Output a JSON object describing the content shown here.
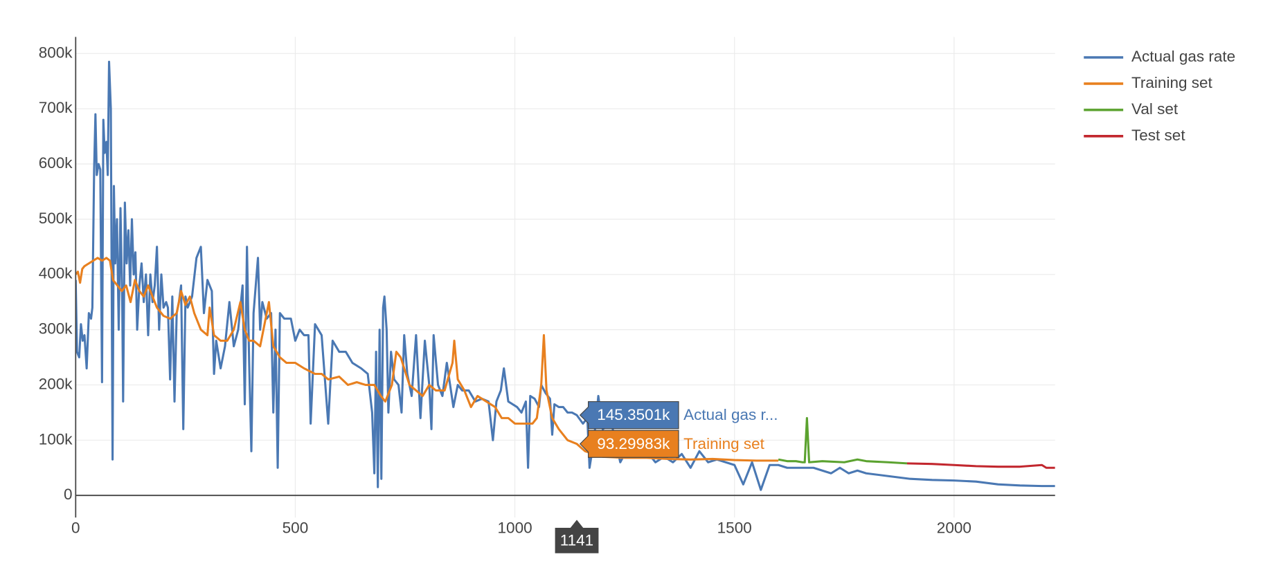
{
  "chart_data": {
    "type": "line",
    "xlim": [
      0,
      2230
    ],
    "ylim": [
      -40000,
      830000
    ],
    "xticks": [
      0,
      500,
      1000,
      1500,
      2000
    ],
    "yticks": [
      0,
      {
        "value": 100000,
        "label": "100k"
      },
      {
        "value": 200000,
        "label": "200k"
      },
      {
        "value": 300000,
        "label": "300k"
      },
      {
        "value": 400000,
        "label": "400k"
      },
      {
        "value": 500000,
        "label": "500k"
      },
      {
        "value": 600000,
        "label": "600k"
      },
      {
        "value": 700000,
        "label": "700k"
      },
      {
        "value": 800000,
        "label": "800k"
      }
    ],
    "grid": true,
    "legend": "top-right",
    "series": [
      {
        "name": "Actual gas rate",
        "color": "#4a78b3",
        "x": [
          0,
          3,
          8,
          12,
          16,
          20,
          25,
          30,
          35,
          38,
          42,
          45,
          48,
          52,
          56,
          60,
          63,
          66,
          70,
          73,
          76,
          80,
          84,
          87,
          90,
          94,
          98,
          102,
          106,
          108,
          112,
          116,
          120,
          124,
          128,
          132,
          136,
          140,
          145,
          150,
          155,
          160,
          165,
          170,
          175,
          180,
          185,
          190,
          195,
          200,
          206,
          210,
          215,
          220,
          225,
          230,
          235,
          240,
          245,
          250,
          255,
          265,
          275,
          285,
          292,
          300,
          310,
          315,
          320,
          330,
          340,
          350,
          360,
          370,
          380,
          385,
          390,
          395,
          400,
          405,
          410,
          415,
          420,
          425,
          435,
          445,
          450,
          455,
          460,
          465,
          475,
          490,
          500,
          510,
          520,
          530,
          535,
          545,
          560,
          575,
          585,
          600,
          615,
          630,
          650,
          665,
          675,
          680,
          684,
          688,
          692,
          696,
          700,
          703,
          708,
          712,
          718,
          725,
          735,
          742,
          748,
          755,
          765,
          775,
          785,
          795,
          805,
          810,
          815,
          825,
          835,
          845,
          860,
          870,
          880,
          895,
          910,
          925,
          940,
          950,
          958,
          968,
          975,
          985,
          995,
          1005,
          1015,
          1025,
          1030,
          1035,
          1045,
          1055,
          1060,
          1070,
          1080,
          1085,
          1090,
          1100,
          1110,
          1120,
          1130,
          1141,
          1155,
          1165,
          1170,
          1180,
          1190,
          1200,
          1220,
          1240,
          1260,
          1280,
          1300,
          1320,
          1340,
          1360,
          1380,
          1400,
          1420,
          1440,
          1460,
          1480,
          1500,
          1520,
          1540,
          1560,
          1580,
          1600,
          1620,
          1650,
          1680,
          1700,
          1720,
          1740,
          1760,
          1780,
          1800,
          1850,
          1900,
          1950,
          2000,
          2050,
          2100,
          2150,
          2200,
          2230
        ],
        "values": [
          390000,
          260000,
          250000,
          310000,
          280000,
          290000,
          230000,
          330000,
          320000,
          340000,
          590000,
          690000,
          580000,
          600000,
          590000,
          205000,
          680000,
          620000,
          640000,
          580000,
          785000,
          700000,
          65000,
          560000,
          420000,
          500000,
          300000,
          520000,
          350000,
          170000,
          530000,
          420000,
          480000,
          380000,
          500000,
          400000,
          440000,
          300000,
          380000,
          420000,
          350000,
          400000,
          290000,
          400000,
          350000,
          380000,
          450000,
          300000,
          400000,
          340000,
          350000,
          340000,
          210000,
          360000,
          170000,
          330000,
          350000,
          380000,
          120000,
          360000,
          340000,
          360000,
          430000,
          450000,
          330000,
          390000,
          370000,
          220000,
          280000,
          230000,
          270000,
          350000,
          270000,
          300000,
          380000,
          165000,
          450000,
          240000,
          80000,
          330000,
          380000,
          430000,
          300000,
          350000,
          320000,
          330000,
          150000,
          300000,
          50000,
          330000,
          320000,
          320000,
          280000,
          300000,
          290000,
          290000,
          130000,
          310000,
          290000,
          130000,
          280000,
          260000,
          260000,
          240000,
          230000,
          220000,
          150000,
          40000,
          260000,
          15000,
          300000,
          30000,
          340000,
          360000,
          300000,
          150000,
          260000,
          210000,
          200000,
          150000,
          290000,
          220000,
          180000,
          290000,
          140000,
          280000,
          200000,
          120000,
          290000,
          200000,
          180000,
          240000,
          160000,
          200000,
          190000,
          190000,
          170000,
          175000,
          170000,
          100000,
          170000,
          190000,
          230000,
          170000,
          165000,
          160000,
          150000,
          170000,
          50000,
          180000,
          175000,
          160000,
          200000,
          185000,
          175000,
          110000,
          165000,
          160000,
          160000,
          150000,
          150000,
          145350.1,
          130000,
          140000,
          50000,
          100000,
          180000,
          120000,
          130000,
          60000,
          90000,
          70000,
          80000,
          60000,
          70000,
          60000,
          75000,
          50000,
          80000,
          60000,
          65000,
          60000,
          55000,
          20000,
          60000,
          10000,
          55000,
          55000,
          50000,
          50000,
          50000,
          45000,
          40000,
          50000,
          40000,
          45000,
          40000,
          35000,
          30000,
          28000,
          27000,
          25000,
          20000,
          18000,
          17000,
          17000
        ]
      },
      {
        "name": "Training set",
        "color": "#e8801f",
        "x": [
          0,
          5,
          10,
          15,
          20,
          30,
          40,
          50,
          60,
          70,
          78,
          85,
          95,
          105,
          115,
          125,
          135,
          145,
          155,
          165,
          175,
          185,
          200,
          215,
          230,
          240,
          250,
          260,
          270,
          285,
          300,
          305,
          315,
          330,
          345,
          360,
          375,
          385,
          395,
          405,
          420,
          430,
          440,
          450,
          465,
          480,
          500,
          520,
          545,
          560,
          575,
          600,
          620,
          640,
          660,
          680,
          695,
          705,
          720,
          730,
          740,
          760,
          775,
          790,
          805,
          820,
          840,
          858,
          862,
          870,
          885,
          900,
          915,
          935,
          955,
          970,
          985,
          1000,
          1020,
          1040,
          1050,
          1060,
          1066,
          1072,
          1085,
          1100,
          1120,
          1141,
          1160,
          1180,
          1200,
          1250,
          1300,
          1350,
          1400,
          1450,
          1500,
          1550,
          1600
        ],
        "values": [
          400000,
          405000,
          385000,
          410000,
          415000,
          420000,
          425000,
          430000,
          425000,
          430000,
          425000,
          390000,
          380000,
          370000,
          380000,
          350000,
          390000,
          370000,
          360000,
          380000,
          360000,
          340000,
          325000,
          320000,
          330000,
          370000,
          345000,
          360000,
          330000,
          300000,
          290000,
          340000,
          290000,
          280000,
          280000,
          300000,
          350000,
          300000,
          280000,
          280000,
          270000,
          310000,
          350000,
          270000,
          250000,
          240000,
          240000,
          230000,
          220000,
          220000,
          210000,
          215000,
          200000,
          205000,
          200000,
          200000,
          180000,
          170000,
          200000,
          260000,
          250000,
          200000,
          190000,
          180000,
          200000,
          190000,
          190000,
          240000,
          280000,
          210000,
          190000,
          160000,
          180000,
          170000,
          160000,
          140000,
          140000,
          130000,
          130000,
          130000,
          140000,
          200000,
          290000,
          190000,
          140000,
          120000,
          100000,
          93299.83,
          80000,
          75000,
          70000,
          68000,
          68000,
          66000,
          65000,
          66000,
          64000,
          63000,
          63000
        ]
      },
      {
        "name": "Val set",
        "color": "#5ba22f",
        "x": [
          1600,
          1620,
          1640,
          1655,
          1660,
          1665,
          1670,
          1700,
          1750,
          1780,
          1800,
          1850,
          1893
        ],
        "values": [
          65000,
          62000,
          62000,
          60000,
          60000,
          140000,
          60000,
          62000,
          60000,
          65000,
          62000,
          60000,
          58000
        ]
      },
      {
        "name": "Test set",
        "color": "#c2272e",
        "x": [
          1893,
          1950,
          2000,
          2050,
          2100,
          2150,
          2200,
          2210,
          2230
        ],
        "values": [
          58000,
          57000,
          55000,
          53000,
          52000,
          52000,
          55000,
          50000,
          50000
        ]
      }
    ],
    "hover": {
      "x": 1141,
      "points": [
        {
          "value": 145350.1,
          "label": "145.3501k",
          "name_label": "Actual gas r..."
        },
        {
          "value": 93299.83,
          "label": "93.29983k",
          "name_label": "Training set"
        }
      ]
    }
  }
}
